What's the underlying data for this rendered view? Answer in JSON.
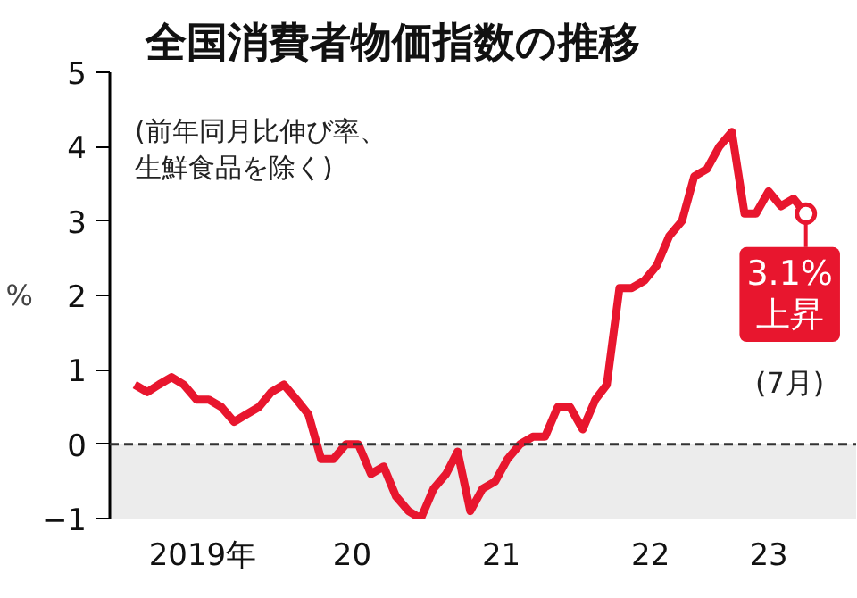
{
  "chart_data": {
    "type": "line",
    "title": "全国消費者物価指数の推移",
    "subtitle": "(前年同月比伸び率、生鮮食品を除く)",
    "ylabel": "%",
    "x": [
      "2019-01",
      "2019-02",
      "2019-03",
      "2019-04",
      "2019-05",
      "2019-06",
      "2019-07",
      "2019-08",
      "2019-09",
      "2019-10",
      "2019-11",
      "2019-12",
      "2020-01",
      "2020-02",
      "2020-03",
      "2020-04",
      "2020-05",
      "2020-06",
      "2020-07",
      "2020-08",
      "2020-09",
      "2020-10",
      "2020-11",
      "2020-12",
      "2021-01",
      "2021-02",
      "2021-03",
      "2021-04",
      "2021-05",
      "2021-06",
      "2021-07",
      "2021-08",
      "2021-09",
      "2021-10",
      "2021-11",
      "2021-12",
      "2022-01",
      "2022-02",
      "2022-03",
      "2022-04",
      "2022-05",
      "2022-06",
      "2022-07",
      "2022-08",
      "2022-09",
      "2022-10",
      "2022-11",
      "2022-12",
      "2023-01",
      "2023-02",
      "2023-03",
      "2023-04",
      "2023-05",
      "2023-06",
      "2023-07"
    ],
    "series": [
      {
        "color": "#e8162e",
        "values": [
          0.8,
          0.7,
          0.8,
          0.9,
          0.8,
          0.6,
          0.6,
          0.5,
          0.3,
          0.4,
          0.5,
          0.7,
          0.8,
          0.6,
          0.4,
          -0.2,
          -0.2,
          0.0,
          0.0,
          -0.4,
          -0.3,
          -0.7,
          -0.9,
          -1.0,
          -0.6,
          -0.4,
          -0.1,
          -0.9,
          -0.6,
          -0.5,
          -0.2,
          0.0,
          0.1,
          0.1,
          0.5,
          0.5,
          0.2,
          0.6,
          0.8,
          2.1,
          2.1,
          2.2,
          2.4,
          2.8,
          3.0,
          3.6,
          3.7,
          4.0,
          4.2,
          3.1,
          3.1,
          3.4,
          3.2,
          3.3,
          3.1
        ]
      }
    ],
    "xlim": [
      "2018-11",
      "2023-11"
    ],
    "xticks": [
      {
        "value": "2019-06-16",
        "label": "2019年"
      },
      {
        "value": "2020-06-16",
        "label": "20"
      },
      {
        "value": "2021-06-16",
        "label": "21"
      },
      {
        "value": "2022-06-16",
        "label": "22"
      },
      {
        "value": "2023-04-01",
        "label": "23"
      }
    ],
    "ylim": [
      -1,
      5
    ],
    "yticks": [
      -1,
      0,
      1,
      2,
      3,
      4,
      5
    ],
    "grid": false,
    "marker": "none",
    "line_style": "solid",
    "ref_lines": [
      {
        "axis": "y",
        "value": 0,
        "color": "#333333",
        "line_style": "dashed"
      }
    ],
    "bands": [
      {
        "axis": "y",
        "from": -1,
        "to": 0,
        "color": "#ececec"
      }
    ],
    "annotations": [
      {
        "text": "3.1%\n上昇",
        "x": "2023-07",
        "y": 3.1
      },
      "(7月)"
    ]
  }
}
